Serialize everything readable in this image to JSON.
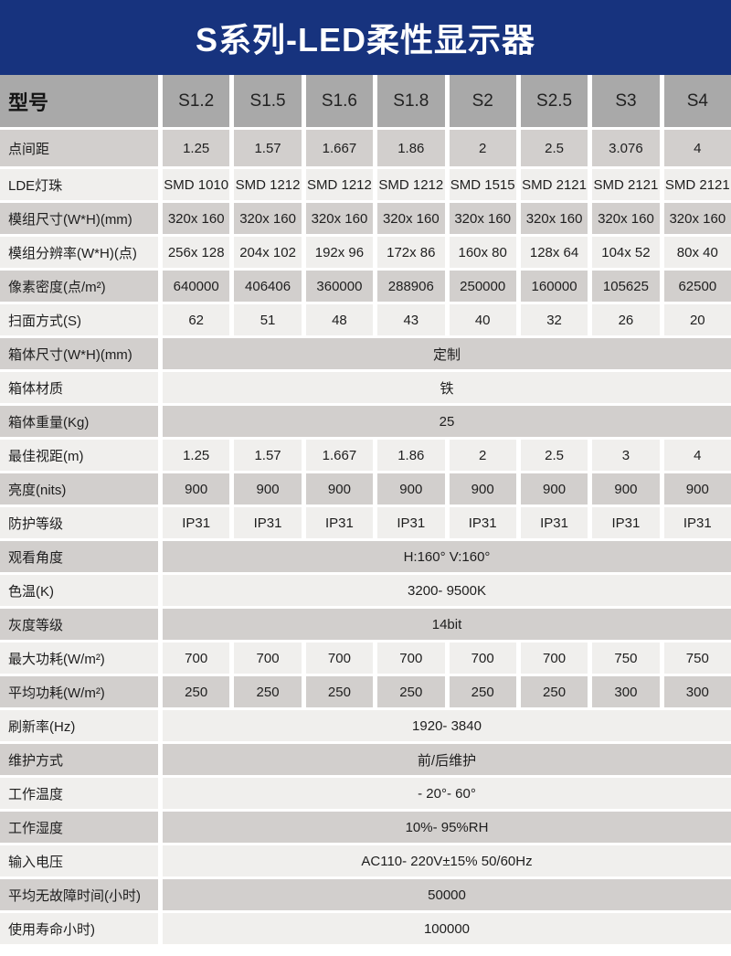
{
  "title": "S系列-LED柔性显示器",
  "colors": {
    "title_bg": "#17337e",
    "title_fg": "#ffffff",
    "header_bg": "#a9a9a9",
    "band_dark": "#d2cfcd",
    "band_light": "#f0efed",
    "separator": "#ffffff",
    "text": "#1e1e1e"
  },
  "table": {
    "header": {
      "label": "型号",
      "columns": [
        "S1.2",
        "S1.5",
        "S1.6",
        "S1.8",
        "S2",
        "S2.5",
        "S3",
        "S4"
      ]
    },
    "rows": [
      {
        "label": "点间距",
        "type": "grid",
        "values": [
          "1.25",
          "1.57",
          "1.667",
          "1.86",
          "2",
          "2.5",
          "3.076",
          "4"
        ]
      },
      {
        "label": "LDE灯珠",
        "type": "grid",
        "values": [
          "SMD 1010",
          "SMD 1212",
          "SMD 1212",
          "SMD 1212",
          "SMD 1515",
          "SMD 2121",
          "SMD 2121",
          "SMD 2121"
        ]
      },
      {
        "label": "模组尺寸(W*H)(mm)",
        "type": "grid",
        "values": [
          "320x 160",
          "320x 160",
          "320x 160",
          "320x 160",
          "320x 160",
          "320x 160",
          "320x 160",
          "320x 160"
        ]
      },
      {
        "label": "模组分辨率(W*H)(点)",
        "type": "grid",
        "values": [
          "256x 128",
          "204x 102",
          "192x 96",
          "172x 86",
          "160x 80",
          "128x 64",
          "104x 52",
          "80x 40"
        ]
      },
      {
        "label": "像素密度(点/m²)",
        "type": "grid",
        "values": [
          "640000",
          "406406",
          "360000",
          "288906",
          "250000",
          "160000",
          "105625",
          "62500"
        ]
      },
      {
        "label": "扫面方式(S)",
        "type": "grid",
        "values": [
          "62",
          "51",
          "48",
          "43",
          "40",
          "32",
          "26",
          "20"
        ]
      },
      {
        "label": "箱体尺寸(W*H)(mm)",
        "type": "span",
        "value": "定制"
      },
      {
        "label": "箱体材质",
        "type": "span",
        "value": "铁"
      },
      {
        "label": "箱体重量(Kg)",
        "type": "span",
        "value": "25"
      },
      {
        "label": "最佳视距(m)",
        "type": "grid",
        "values": [
          "1.25",
          "1.57",
          "1.667",
          "1.86",
          "2",
          "2.5",
          "3",
          "4"
        ]
      },
      {
        "label": "亮度(nits)",
        "type": "grid",
        "values": [
          "900",
          "900",
          "900",
          "900",
          "900",
          "900",
          "900",
          "900"
        ]
      },
      {
        "label": "防护等级",
        "type": "grid",
        "values": [
          "IP31",
          "IP31",
          "IP31",
          "IP31",
          "IP31",
          "IP31",
          "IP31",
          "IP31"
        ]
      },
      {
        "label": "观看角度",
        "type": "span",
        "value": "H:160°  V:160°"
      },
      {
        "label": "色温(K)",
        "type": "span",
        "value": "3200- 9500K"
      },
      {
        "label": "灰度等级",
        "type": "span",
        "value": "14bit"
      },
      {
        "label": "最大功耗(W/m²)",
        "type": "grid",
        "values": [
          "700",
          "700",
          "700",
          "700",
          "700",
          "700",
          "750",
          "750"
        ]
      },
      {
        "label": "平均功耗(W/m²)",
        "type": "grid",
        "values": [
          "250",
          "250",
          "250",
          "250",
          "250",
          "250",
          "300",
          "300"
        ]
      },
      {
        "label": "刷新率(Hz)",
        "type": "span",
        "value": "1920- 3840"
      },
      {
        "label": "维护方式",
        "type": "span",
        "value": "前/后维护"
      },
      {
        "label": "工作温度",
        "type": "span",
        "value": "- 20°- 60°"
      },
      {
        "label": "工作湿度",
        "type": "span",
        "value": "10%- 95%RH"
      },
      {
        "label": "输入电压",
        "type": "span",
        "value": "AC110- 220V±15% 50/60Hz"
      },
      {
        "label": "平均无故障时间(小时)",
        "type": "span",
        "value": "50000"
      },
      {
        "label": "使用寿命小时)",
        "type": "span",
        "value": "100000"
      }
    ]
  }
}
